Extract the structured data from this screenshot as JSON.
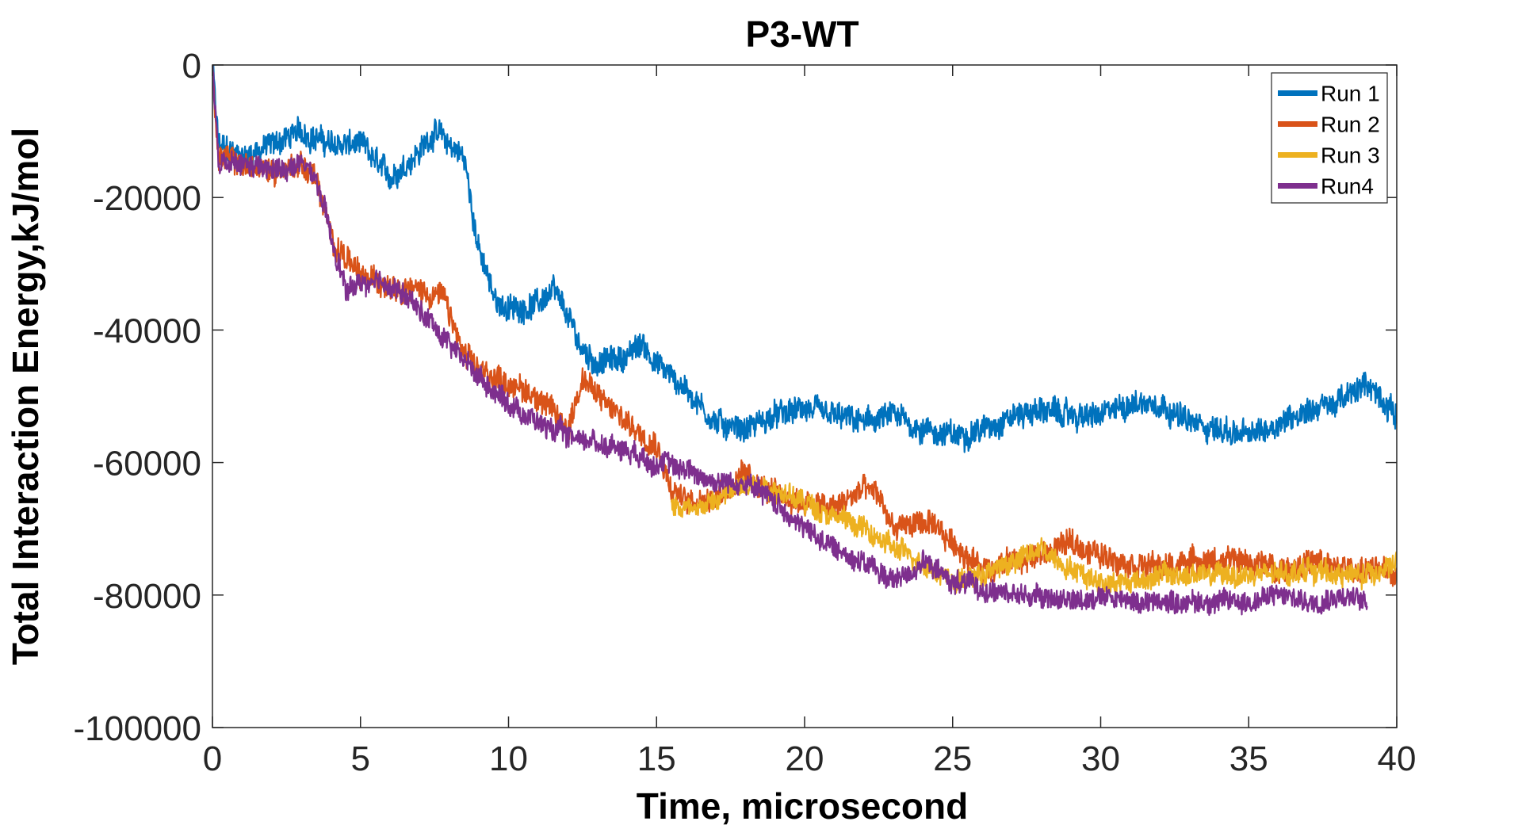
{
  "chart_data": {
    "type": "line",
    "title": "P3-WT",
    "xlabel": "Time, microsecond",
    "ylabel": "Total Interaction Energy,kJ/mol",
    "xlim": [
      0,
      40
    ],
    "ylim": [
      -100000,
      0
    ],
    "xticks": [
      "0",
      "5",
      "10",
      "15",
      "20",
      "25",
      "30",
      "35",
      "40"
    ],
    "yticks": [
      "0",
      "-20000",
      "-40000",
      "-60000",
      "-80000",
      "-100000"
    ],
    "grid": false,
    "legend_position": "top-right",
    "series": [
      {
        "name": "Run 1",
        "color": "#0072BD",
        "noise": 3500,
        "points": [
          [
            0,
            0
          ],
          [
            0.2,
            -12000
          ],
          [
            1,
            -14000
          ],
          [
            2,
            -12000
          ],
          [
            3,
            -10000
          ],
          [
            4,
            -12000
          ],
          [
            5,
            -12000
          ],
          [
            6,
            -17000
          ],
          [
            7,
            -13000
          ],
          [
            7.5,
            -10000
          ],
          [
            8.5,
            -14000
          ],
          [
            9,
            -28000
          ],
          [
            9.5,
            -35000
          ],
          [
            10,
            -37000
          ],
          [
            11,
            -36000
          ],
          [
            11.5,
            -34000
          ],
          [
            12,
            -38000
          ],
          [
            12.5,
            -43000
          ],
          [
            13,
            -45000
          ],
          [
            14,
            -44000
          ],
          [
            14.5,
            -42000
          ],
          [
            15,
            -45000
          ],
          [
            16,
            -49000
          ],
          [
            17,
            -54000
          ],
          [
            18,
            -55000
          ],
          [
            19,
            -53000
          ],
          [
            20,
            -52000
          ],
          [
            21,
            -53000
          ],
          [
            22,
            -54000
          ],
          [
            23,
            -53000
          ],
          [
            24,
            -55000
          ],
          [
            25,
            -56000
          ],
          [
            26,
            -55000
          ],
          [
            27,
            -53000
          ],
          [
            28,
            -52000
          ],
          [
            29,
            -53000
          ],
          [
            30,
            -53000
          ],
          [
            31,
            -51000
          ],
          [
            32,
            -51000
          ],
          [
            33,
            -54000
          ],
          [
            34,
            -55000
          ],
          [
            35,
            -56000
          ],
          [
            36,
            -54000
          ],
          [
            37,
            -52000
          ],
          [
            38,
            -51000
          ],
          [
            39,
            -48000
          ],
          [
            40,
            -53000
          ]
        ]
      },
      {
        "name": "Run 2",
        "color": "#D95319",
        "noise": 3500,
        "points": [
          [
            0,
            0
          ],
          [
            0.2,
            -14000
          ],
          [
            1,
            -15000
          ],
          [
            2,
            -16000
          ],
          [
            3,
            -15000
          ],
          [
            3.5,
            -17000
          ],
          [
            4,
            -26000
          ],
          [
            5,
            -32000
          ],
          [
            6,
            -33000
          ],
          [
            7,
            -34000
          ],
          [
            7.8,
            -35000
          ],
          [
            8.5,
            -44000
          ],
          [
            9,
            -46000
          ],
          [
            10,
            -48000
          ],
          [
            11,
            -50000
          ],
          [
            12,
            -55000
          ],
          [
            12.5,
            -47000
          ],
          [
            13,
            -50000
          ],
          [
            14,
            -54000
          ],
          [
            15,
            -57000
          ],
          [
            15.5,
            -64000
          ],
          [
            16,
            -66000
          ],
          [
            17,
            -65000
          ],
          [
            18,
            -62000
          ],
          [
            19,
            -65000
          ],
          [
            20,
            -66000
          ],
          [
            21,
            -67000
          ],
          [
            22,
            -64000
          ],
          [
            22.5,
            -65000
          ],
          [
            23,
            -70000
          ],
          [
            24,
            -69000
          ],
          [
            25,
            -72000
          ],
          [
            26,
            -76000
          ],
          [
            27,
            -75000
          ],
          [
            28,
            -74000
          ],
          [
            29,
            -72000
          ],
          [
            30,
            -74000
          ],
          [
            31,
            -75000
          ],
          [
            32,
            -76000
          ],
          [
            33,
            -75000
          ],
          [
            34,
            -75000
          ],
          [
            35,
            -75000
          ],
          [
            36,
            -76000
          ],
          [
            37,
            -75000
          ],
          [
            38,
            -76000
          ],
          [
            39,
            -76000
          ],
          [
            40,
            -77000
          ]
        ]
      },
      {
        "name": "Run 3",
        "color": "#EDB120",
        "noise": 3000,
        "points": [
          [
            15.5,
            -66000
          ],
          [
            16,
            -67000
          ],
          [
            17,
            -66000
          ],
          [
            18,
            -63000
          ],
          [
            19,
            -64000
          ],
          [
            20,
            -66000
          ],
          [
            21,
            -68000
          ],
          [
            22,
            -70000
          ],
          [
            23,
            -73000
          ],
          [
            24,
            -75000
          ],
          [
            25,
            -78000
          ],
          [
            26,
            -77000
          ],
          [
            27,
            -75000
          ],
          [
            28,
            -73000
          ],
          [
            29,
            -76000
          ],
          [
            30,
            -78000
          ],
          [
            31,
            -78000
          ],
          [
            32,
            -77000
          ],
          [
            33,
            -77000
          ],
          [
            34,
            -77000
          ],
          [
            35,
            -77000
          ],
          [
            36,
            -77000
          ],
          [
            37,
            -76000
          ],
          [
            38,
            -77000
          ],
          [
            39,
            -77000
          ],
          [
            40,
            -75000
          ]
        ]
      },
      {
        "name": "Run4",
        "color": "#7E2F8E",
        "noise": 3000,
        "points": [
          [
            0,
            0
          ],
          [
            0.2,
            -15000
          ],
          [
            1,
            -15000
          ],
          [
            2,
            -16000
          ],
          [
            3,
            -15000
          ],
          [
            3.5,
            -17000
          ],
          [
            4,
            -26000
          ],
          [
            4.5,
            -34000
          ],
          [
            5,
            -33000
          ],
          [
            6,
            -33000
          ],
          [
            7,
            -37000
          ],
          [
            8,
            -42000
          ],
          [
            9,
            -47000
          ],
          [
            10,
            -51000
          ],
          [
            11,
            -54000
          ],
          [
            12,
            -56000
          ],
          [
            13,
            -57000
          ],
          [
            14,
            -58000
          ],
          [
            15,
            -60000
          ],
          [
            16,
            -61000
          ],
          [
            17,
            -63000
          ],
          [
            18,
            -63000
          ],
          [
            19,
            -66000
          ],
          [
            20,
            -70000
          ],
          [
            21,
            -73000
          ],
          [
            22,
            -75000
          ],
          [
            23,
            -78000
          ],
          [
            24,
            -75000
          ],
          [
            25,
            -78000
          ],
          [
            26,
            -79000
          ],
          [
            27,
            -80000
          ],
          [
            28,
            -80000
          ],
          [
            29,
            -81000
          ],
          [
            30,
            -80000
          ],
          [
            31,
            -81000
          ],
          [
            32,
            -81000
          ],
          [
            33,
            -81000
          ],
          [
            34,
            -81000
          ],
          [
            35,
            -81000
          ],
          [
            36,
            -80000
          ],
          [
            37,
            -81000
          ],
          [
            38,
            -80000
          ],
          [
            39,
            -81000
          ]
        ]
      }
    ]
  }
}
